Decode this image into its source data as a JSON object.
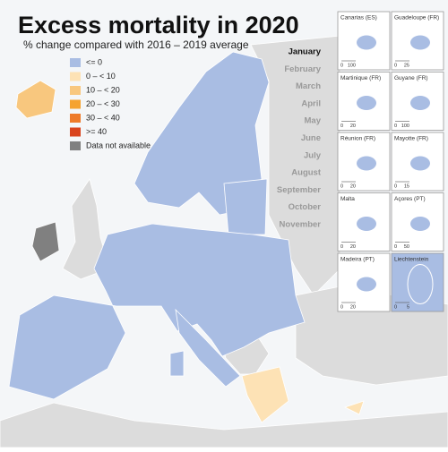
{
  "header": {
    "title": "Excess mortality in 2020",
    "subtitle": "% change compared with 2016 – 2019 average"
  },
  "legend": {
    "items": [
      {
        "label": "<= 0",
        "color": "#a9bde3"
      },
      {
        "label": "0 – < 10",
        "color": "#fde2b5"
      },
      {
        "label": "10 – < 20",
        "color": "#f8c77e"
      },
      {
        "label": "20 – < 30",
        "color": "#f5a330"
      },
      {
        "label": "30 – < 40",
        "color": "#ee7b2a"
      },
      {
        "label": ">= 40",
        "color": "#d9441d"
      },
      {
        "label": "Data not available",
        "color": "#808080"
      }
    ]
  },
  "months": {
    "items": [
      "January",
      "February",
      "March",
      "April",
      "May",
      "June",
      "July",
      "August",
      "September",
      "October",
      "November"
    ],
    "selected": 0
  },
  "insets": [
    {
      "name": "Canarias (ES)",
      "scale": [
        0,
        100
      ]
    },
    {
      "name": "Guadeloupe (FR)",
      "scale": [
        0,
        25
      ]
    },
    {
      "name": "Martinique (FR)",
      "scale": [
        0,
        20
      ]
    },
    {
      "name": "Guyane (FR)",
      "scale": [
        0,
        100
      ]
    },
    {
      "name": "Réunion (FR)",
      "scale": [
        0,
        20
      ]
    },
    {
      "name": "Mayotte (FR)",
      "scale": [
        0,
        15
      ]
    },
    {
      "name": "Malta",
      "scale": [
        0,
        20
      ]
    },
    {
      "name": "Açores (PT)",
      "scale": [
        0,
        50
      ]
    },
    {
      "name": "Madeira (PT)",
      "scale": [
        0,
        20
      ]
    },
    {
      "name": "Liechtenstein",
      "scale": [
        0,
        5
      ]
    }
  ]
}
